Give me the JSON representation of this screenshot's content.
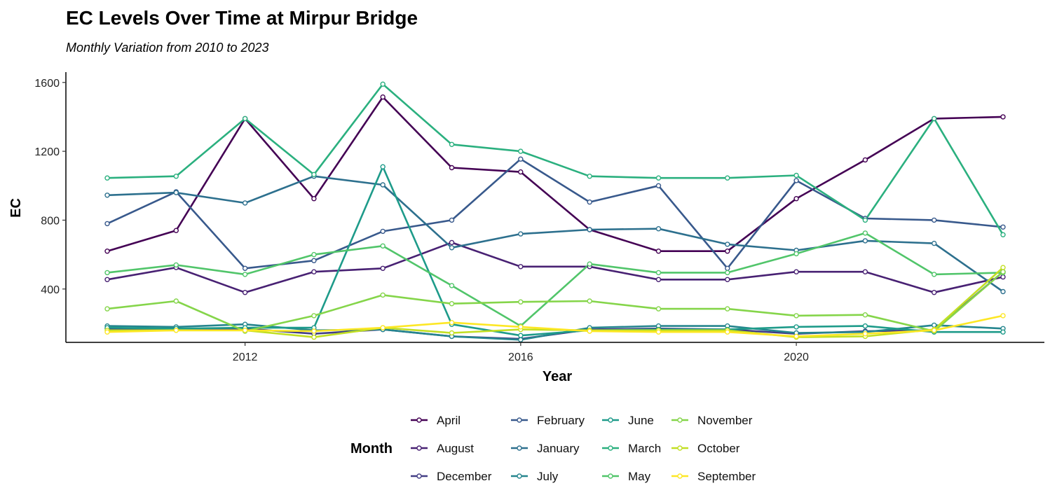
{
  "chart_data": {
    "type": "line",
    "title": "EC Levels Over Time at Mirpur Bridge",
    "subtitle": "Monthly Variation from 2010 to 2023",
    "xlabel": "Year",
    "ylabel": "EC",
    "xlim": [
      2009.4,
      2023.6
    ],
    "ylim": [
      90,
      1660
    ],
    "x_ticks": [
      2012,
      2016,
      2020
    ],
    "y_ticks": [
      400,
      800,
      1200,
      1600
    ],
    "grid": false,
    "legend": {
      "title": "Month",
      "placement": "bottom"
    },
    "x": [
      2010,
      2011,
      2012,
      2013,
      2014,
      2015,
      2016,
      2017,
      2018,
      2019,
      2020,
      2021,
      2022,
      2023
    ],
    "series": [
      {
        "name": "April",
        "color": "#440154",
        "values": [
          620,
          740,
          1390,
          925,
          1515,
          1105,
          1080,
          745,
          620,
          620,
          925,
          1150,
          1390,
          1400
        ]
      },
      {
        "name": "August",
        "color": "#482173",
        "values": [
          455,
          525,
          380,
          500,
          520,
          670,
          530,
          530,
          455,
          455,
          500,
          500,
          380,
          470
        ]
      },
      {
        "name": "December",
        "color": "#433E85",
        "values": [
          170,
          170,
          170,
          140,
          165,
          125,
          110,
          165,
          170,
          165,
          140,
          155,
          160,
          500
        ]
      },
      {
        "name": "February",
        "color": "#38598C",
        "values": [
          780,
          965,
          520,
          565,
          735,
          800,
          1155,
          905,
          1000,
          520,
          1030,
          810,
          800,
          760
        ]
      },
      {
        "name": "January",
        "color": "#2D708E",
        "values": [
          945,
          960,
          900,
          1055,
          1005,
          640,
          720,
          745,
          750,
          660,
          625,
          680,
          665,
          385
        ]
      },
      {
        "name": "July",
        "color": "#25858E",
        "values": [
          185,
          180,
          195,
          160,
          165,
          125,
          105,
          175,
          185,
          185,
          145,
          150,
          190,
          170
        ]
      },
      {
        "name": "June",
        "color": "#1E9B8A",
        "values": [
          175,
          170,
          175,
          175,
          1110,
          195,
          130,
          160,
          165,
          165,
          180,
          185,
          150,
          150
        ]
      },
      {
        "name": "March",
        "color": "#2BB07F",
        "values": [
          1045,
          1055,
          1390,
          1065,
          1590,
          1240,
          1200,
          1055,
          1045,
          1045,
          1060,
          800,
          1390,
          715
        ]
      },
      {
        "name": "May",
        "color": "#51C56A",
        "values": [
          495,
          540,
          485,
          600,
          650,
          420,
          185,
          545,
          495,
          495,
          605,
          725,
          485,
          495
        ]
      },
      {
        "name": "November",
        "color": "#85D54A",
        "values": [
          285,
          330,
          155,
          245,
          365,
          315,
          325,
          330,
          285,
          285,
          245,
          250,
          155,
          500
        ]
      },
      {
        "name": "October",
        "color": "#C2DF23",
        "values": [
          160,
          160,
          160,
          120,
          175,
          145,
          165,
          160,
          160,
          160,
          120,
          125,
          165,
          525
        ]
      },
      {
        "name": "September",
        "color": "#FDE725",
        "values": [
          150,
          160,
          160,
          155,
          175,
          205,
          180,
          155,
          150,
          150,
          125,
          140,
          160,
          245
        ]
      }
    ]
  }
}
